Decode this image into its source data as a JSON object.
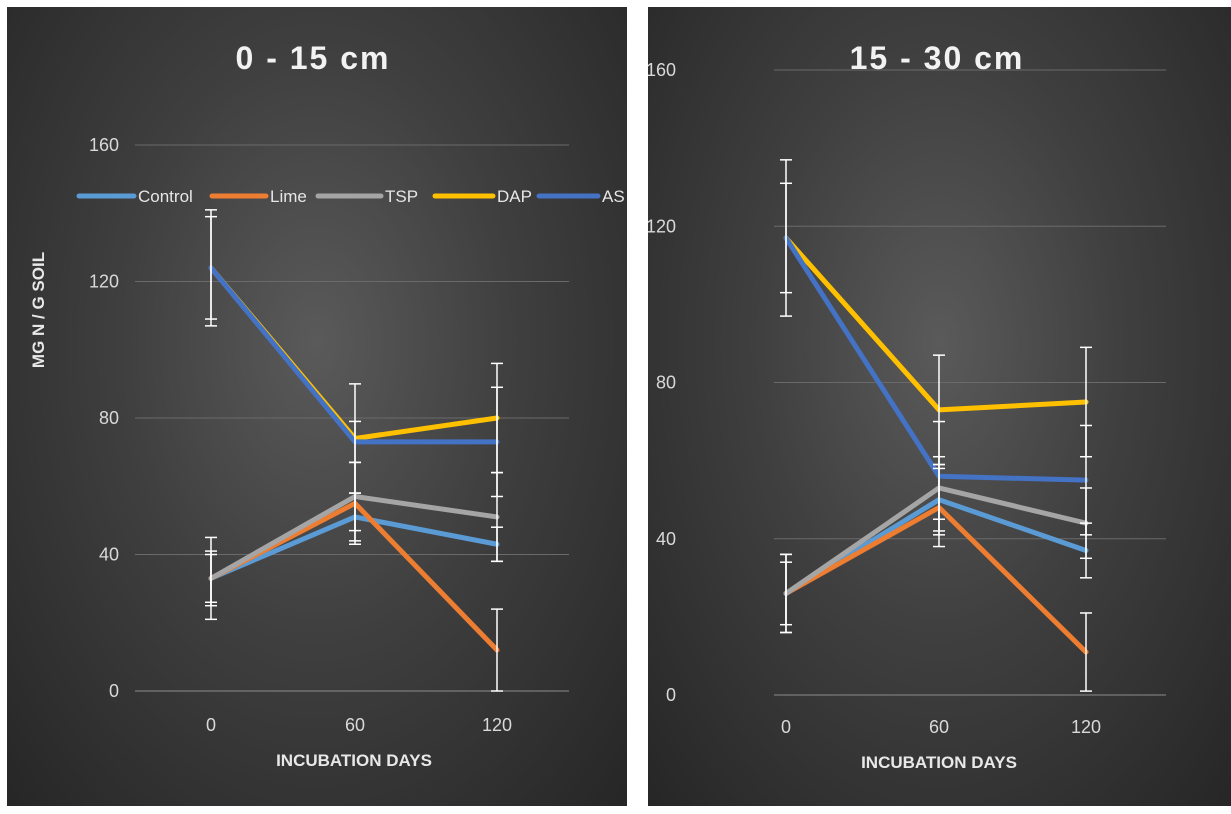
{
  "chart_data": [
    {
      "type": "line",
      "title": "0 - 15 cm",
      "xlabel": "INCUBATION DAYS",
      "ylabel": "MG N / G SOIL",
      "categories": [
        "0",
        "60",
        "120"
      ],
      "ylim": [
        0,
        160
      ],
      "yticks": [
        0,
        40,
        80,
        120,
        160
      ],
      "grid": true,
      "legend": "top",
      "series": [
        {
          "name": "Control",
          "color": "#5B9BD5",
          "values": [
            33,
            51,
            43
          ],
          "err": [
            8,
            7,
            5
          ]
        },
        {
          "name": "Lime",
          "color": "#ED7D31",
          "values": [
            33,
            55,
            12
          ],
          "err": [
            12,
            12,
            12
          ]
        },
        {
          "name": "TSP",
          "color": "#A5A5A5",
          "values": [
            33,
            57,
            51
          ],
          "err": [
            7,
            10,
            13
          ]
        },
        {
          "name": "DAP",
          "color": "#FFC000",
          "values": [
            124,
            74,
            80
          ],
          "err": [
            17,
            16,
            16
          ]
        },
        {
          "name": "AS",
          "color": "#4472C4",
          "values": [
            124,
            73,
            73
          ],
          "err": [
            15,
            6,
            16
          ]
        }
      ]
    },
    {
      "type": "line",
      "title": "15 - 30 cm",
      "xlabel": "INCUBATION DAYS",
      "ylabel": "",
      "categories": [
        "0",
        "60",
        "120"
      ],
      "ylim": [
        0,
        160
      ],
      "yticks": [
        0,
        40,
        80,
        120,
        160
      ],
      "grid": true,
      "legend": "none",
      "series": [
        {
          "name": "Control",
          "color": "#5B9BD5",
          "values": [
            26,
            50,
            37
          ],
          "err": [
            8,
            9,
            7
          ]
        },
        {
          "name": "Lime",
          "color": "#ED7D31",
          "values": [
            26,
            48,
            11
          ],
          "err": [
            10,
            10,
            10
          ]
        },
        {
          "name": "TSP",
          "color": "#A5A5A5",
          "values": [
            26,
            53,
            44
          ],
          "err": [
            10,
            8,
            9
          ]
        },
        {
          "name": "DAP",
          "color": "#FFC000",
          "values": [
            117,
            73,
            75
          ],
          "err": [
            20,
            14,
            14
          ]
        },
        {
          "name": "AS",
          "color": "#4472C4",
          "values": [
            117,
            56,
            55
          ],
          "err": [
            14,
            14,
            14
          ]
        }
      ]
    }
  ]
}
